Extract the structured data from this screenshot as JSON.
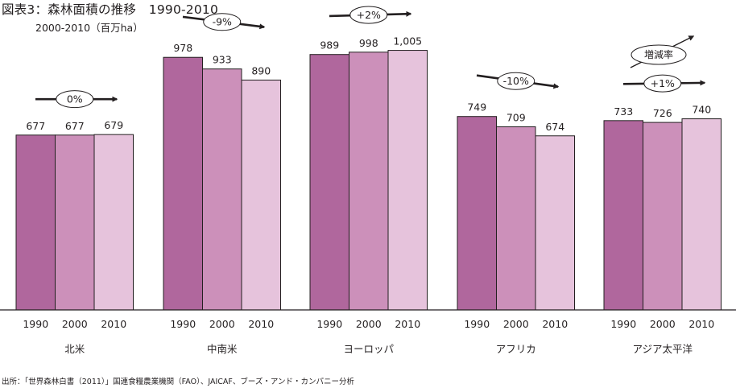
{
  "title": "図表3：森林面積の推移　1990-2010",
  "subtitle": "2000-2010（百万ha）",
  "source": "出所：「世界森林白書（2011）」国連食糧農業機関（FAO）、JAICAF、ブーズ・アンド・カンパニー分析",
  "legend_label": "増減率",
  "colors": {
    "1990": "#b0679d",
    "2000": "#cc90ba",
    "2010": "#e6c3dc"
  },
  "chart_data": {
    "type": "bar",
    "title": "図表3：森林面積の推移　1990-2010",
    "ylabel": "2000-2010（百万ha）",
    "ylim": [
      0,
      1200
    ],
    "grid": false,
    "legend": "top-right",
    "categories": [
      "北米",
      "中南米",
      "ヨーロッパ",
      "アフリカ",
      "アジア太平洋"
    ],
    "x_ticks": [
      "1990",
      "2000",
      "2010"
    ],
    "series": [
      {
        "name": "1990",
        "values": [
          677,
          978,
          989,
          749,
          733
        ]
      },
      {
        "name": "2000",
        "values": [
          677,
          933,
          998,
          709,
          726
        ]
      },
      {
        "name": "2010",
        "values": [
          679,
          890,
          1005,
          674,
          740
        ]
      }
    ],
    "value_labels": [
      [
        "677",
        "677",
        "679"
      ],
      [
        "978",
        "933",
        "890"
      ],
      [
        "989",
        "998",
        "1,005"
      ],
      [
        "749",
        "709",
        "674"
      ],
      [
        "733",
        "726",
        "740"
      ]
    ],
    "change_rates": [
      "0%",
      "-9%",
      "+2%",
      "-10%",
      "+1%"
    ]
  }
}
